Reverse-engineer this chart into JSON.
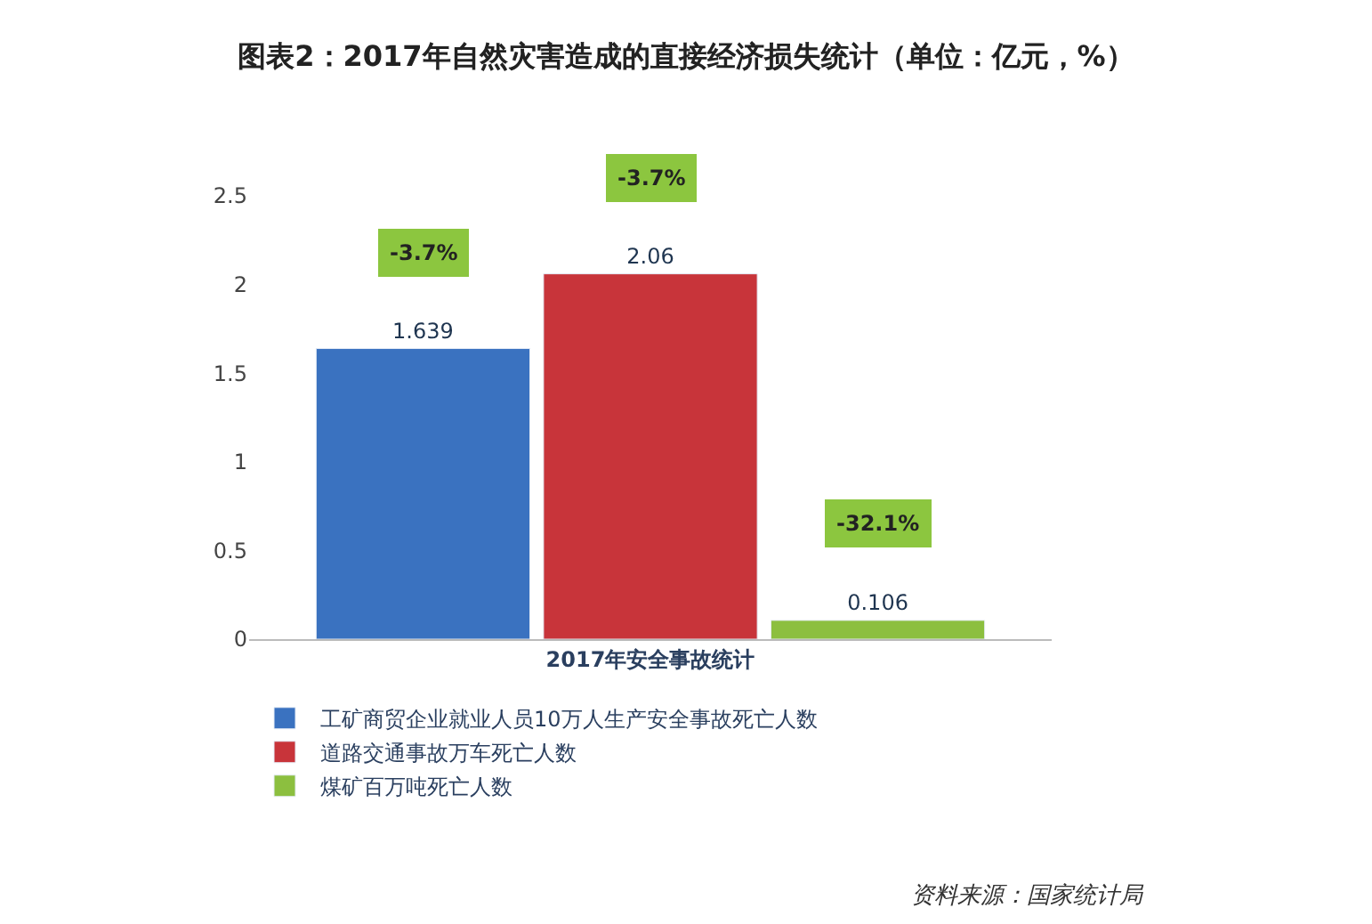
{
  "chart_data": {
    "type": "bar",
    "title": "图表2：2017年自然灾害造成的直接经济损失统计（单位：亿元，%）",
    "categories": [
      "2017年安全事故统计"
    ],
    "series": [
      {
        "name": "工矿商贸企业就业人员10万人生产安全事故死亡人数",
        "color": "#3a72c0",
        "values": [
          1.639
        ]
      },
      {
        "name": "道路交通事故万车死亡人数",
        "color": "#c8343a",
        "values": [
          2.06
        ]
      },
      {
        "name": "煤矿百万吨死亡人数",
        "color": "#8cbf3f",
        "values": [
          0.106
        ]
      }
    ],
    "ylim": [
      0,
      2.5
    ],
    "yticks": [
      0,
      0.5,
      1,
      1.5,
      2,
      2.5
    ],
    "legend": "bottom left",
    "data_labels": true,
    "annotations": [
      "-3.7%",
      "-3.7%",
      "-32.1%",
      "资料来源：国家统计局"
    ]
  }
}
